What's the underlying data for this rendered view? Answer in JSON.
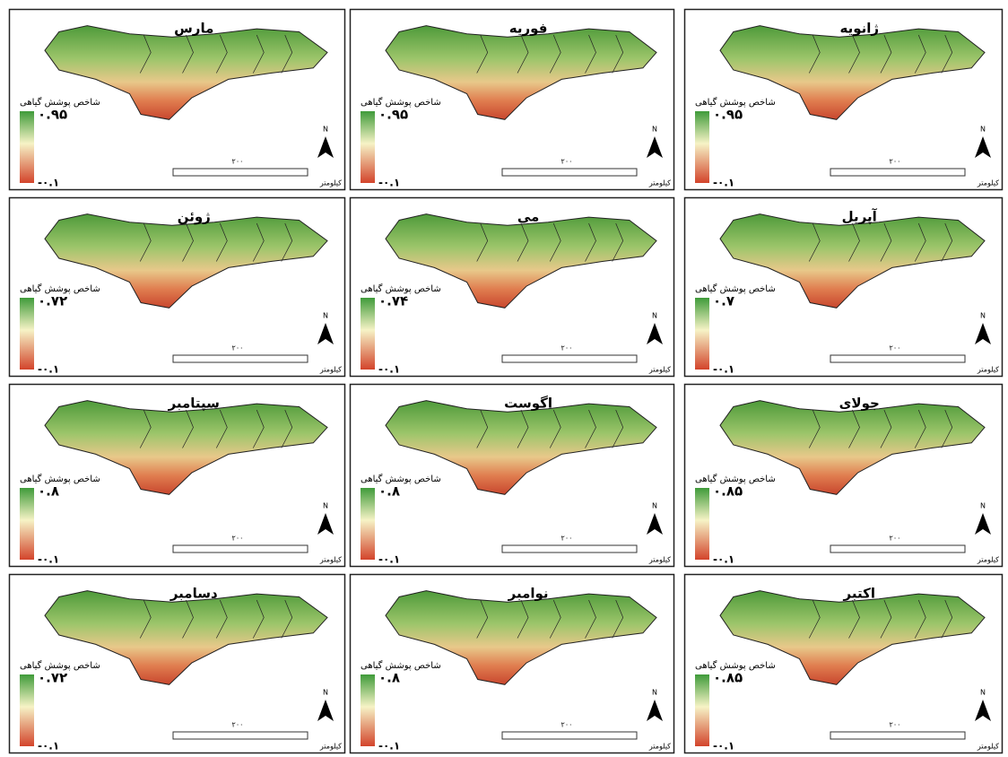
{
  "legend_title": "شاخص پوشش گیاهی",
  "scale_value": "۲۰۰",
  "scale_unit": "کیلومتر",
  "north": "N",
  "panels": [
    {
      "title": "مارس",
      "max_label": "۰.۹۵",
      "min_label": "-۰.۱"
    },
    {
      "title": "فوریه",
      "max_label": "۰.۹۵",
      "min_label": "-۰.۱"
    },
    {
      "title": "ژانویه",
      "max_label": "۰.۹۵",
      "min_label": "-۰.۱"
    },
    {
      "title": "ژوئن",
      "max_label": "۰.۷۲",
      "min_label": "-۰.۱"
    },
    {
      "title": "می",
      "max_label": "۰.۷۴",
      "min_label": "-۰.۱"
    },
    {
      "title": "آپریل",
      "max_label": "۰.۷",
      "min_label": "-۰.۱"
    },
    {
      "title": "سپتامبر",
      "max_label": "۰.۸",
      "min_label": "-۰.۱"
    },
    {
      "title": "اگوست",
      "max_label": "۰.۸",
      "min_label": "-۰.۱"
    },
    {
      "title": "جولای",
      "max_label": "۰.۸۵",
      "min_label": "-۰.۱"
    },
    {
      "title": "دسامبر",
      "max_label": "۰.۷۲",
      "min_label": "-۰.۱"
    },
    {
      "title": "نوامبر",
      "max_label": "۰.۸",
      "min_label": "-۰.۱"
    },
    {
      "title": "اکتبر",
      "max_label": "۰.۸۵",
      "min_label": "-۰.۱"
    }
  ]
}
